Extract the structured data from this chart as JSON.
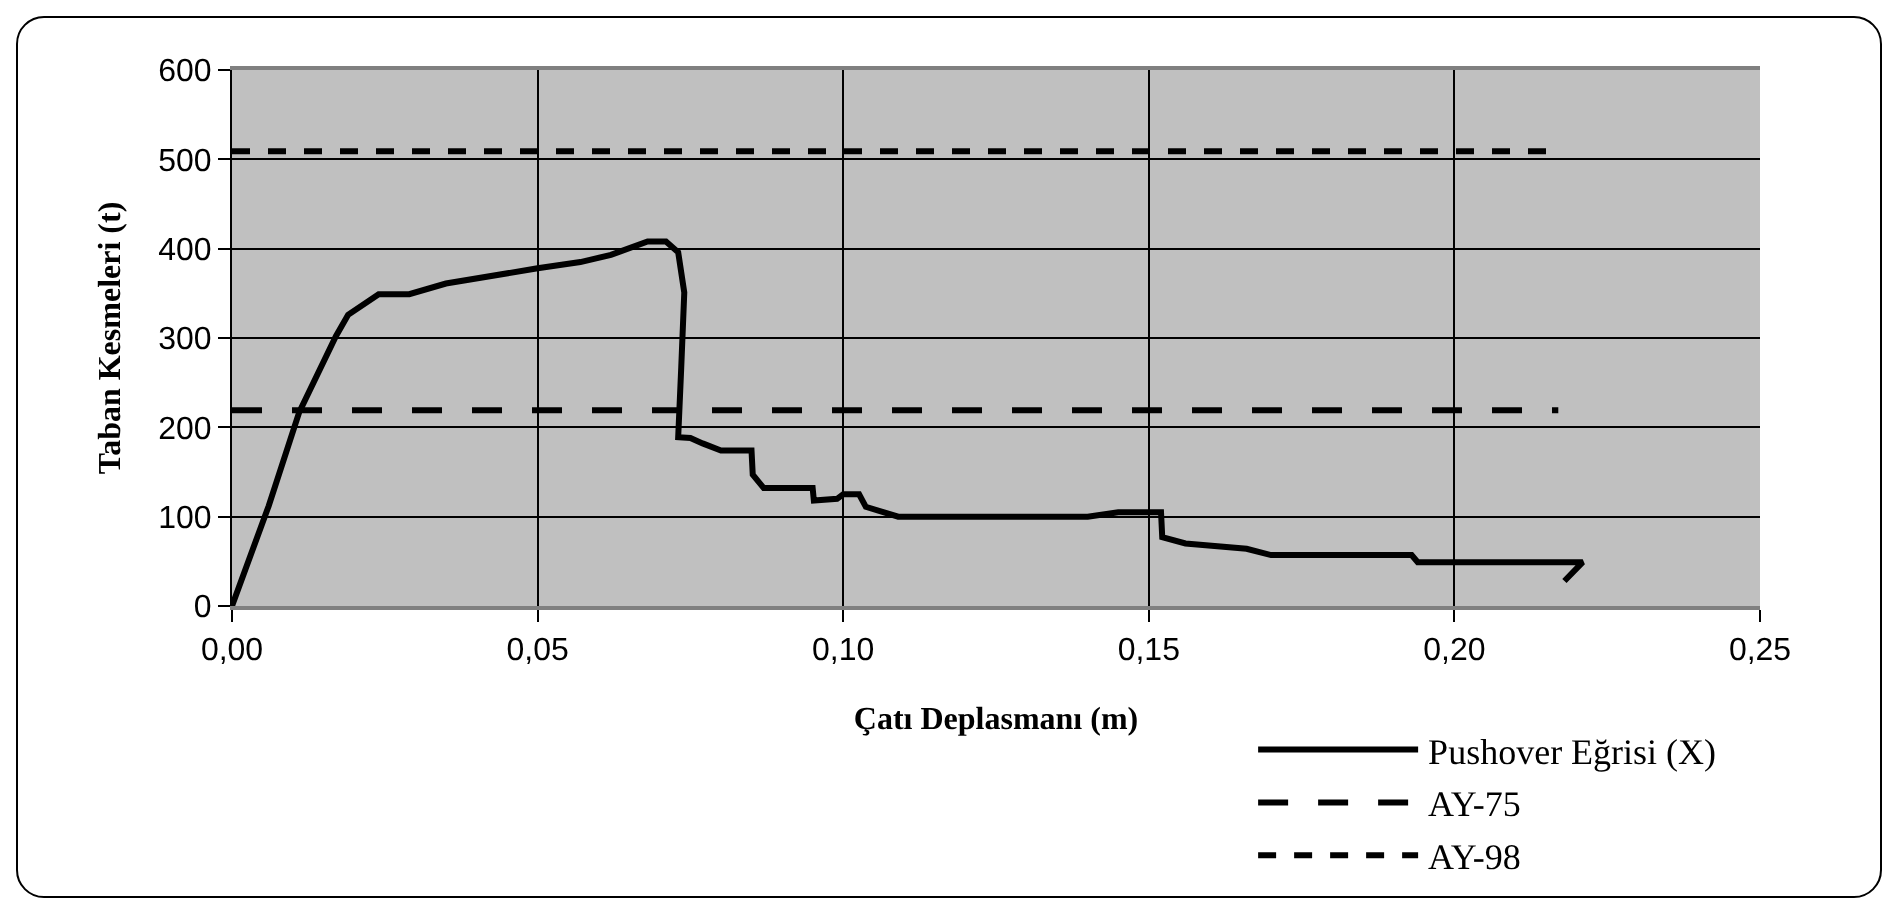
{
  "chart_data": {
    "type": "line",
    "xlabel": "Çatı Deplasmanı (m)",
    "ylabel": "Taban Kesmeleri (t)",
    "xlim": [
      0,
      0.25
    ],
    "ylim": [
      0,
      600
    ],
    "xticks": [
      {
        "value": 0,
        "label": "0,00"
      },
      {
        "value": 0.05,
        "label": "0,05"
      },
      {
        "value": 0.1,
        "label": "0,10"
      },
      {
        "value": 0.15,
        "label": "0,15"
      },
      {
        "value": 0.2,
        "label": "0,20"
      },
      {
        "value": 0.25,
        "label": "0,25"
      }
    ],
    "yticks": [
      0,
      100,
      200,
      300,
      400,
      500,
      600
    ],
    "grid": true,
    "legend": "bottom right",
    "marker": "none",
    "series": [
      {
        "name": "Pushover Eğrisi (X)",
        "color": "#000000",
        "line_style": "solid",
        "x": [
          0,
          0.006,
          0.011,
          0.017,
          0.019,
          0.024,
          0.029,
          0.035,
          0.05,
          0.057,
          0.062,
          0.068,
          0.071,
          0.073,
          0.074,
          0.0735,
          0.073,
          0.075,
          0.077,
          0.08,
          0.085,
          0.0852,
          0.087,
          0.095,
          0.0952,
          0.099,
          0.1,
          0.1026,
          0.1037,
          0.109,
          0.14,
          0.145,
          0.152,
          0.1522,
          0.156,
          0.166,
          0.17,
          0.193,
          0.194,
          0.221,
          0.218
        ],
        "values": [
          0,
          112,
          217,
          302,
          326,
          349,
          349,
          361,
          378,
          385,
          393,
          408,
          408,
          396,
          351,
          267,
          189,
          188,
          182,
          174,
          174,
          147,
          132,
          132,
          118,
          120,
          125,
          125,
          111,
          100,
          100,
          105,
          105,
          77,
          70,
          64,
          57,
          57,
          49,
          49,
          28
        ]
      },
      {
        "name": "AY-75",
        "color": "#000000",
        "line_style": "dashed",
        "x": [
          0,
          0.217
        ],
        "values": [
          219,
          219
        ]
      },
      {
        "name": "AY-98",
        "color": "#000000",
        "line_style": "dotted",
        "x": [
          0,
          0.217
        ],
        "values": [
          509,
          509
        ]
      }
    ]
  }
}
